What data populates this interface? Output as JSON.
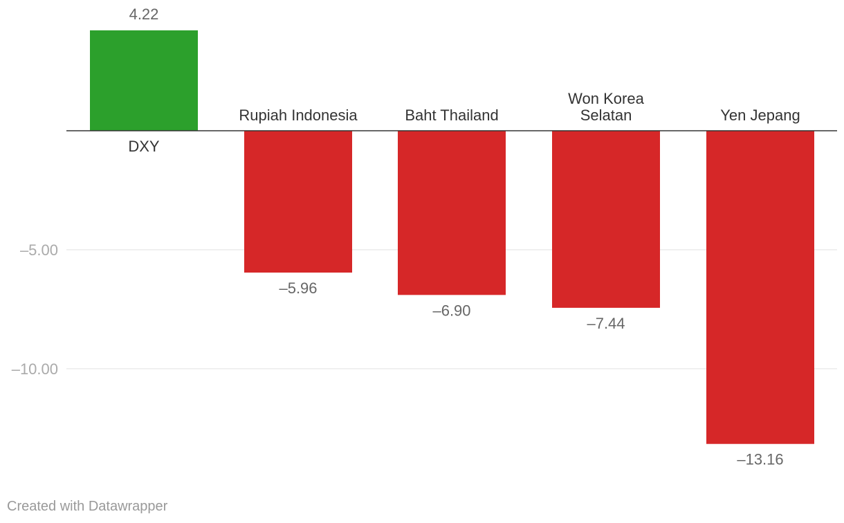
{
  "chart_data": {
    "type": "bar",
    "categories": [
      "DXY",
      "Rupiah Indonesia",
      "Baht Thailand",
      "Won Korea Selatan",
      "Yen Jepang"
    ],
    "category_lines": [
      [
        "DXY"
      ],
      [
        "Rupiah Indonesia"
      ],
      [
        "Baht Thailand"
      ],
      [
        "Won Korea",
        "Selatan"
      ],
      [
        "Yen Jepang"
      ]
    ],
    "values": [
      4.22,
      -5.96,
      -6.9,
      -7.44,
      -13.16
    ],
    "value_labels": [
      "4.22",
      "–5.96",
      "–6.90",
      "–7.44",
      "–13.16"
    ],
    "yticks": [
      {
        "value": -5,
        "label": "–5.00"
      },
      {
        "value": -10,
        "label": "–10.00"
      }
    ],
    "ylim": [
      -14.5,
      4.7
    ],
    "grid": true,
    "colors": {
      "positive": "#2ca02c",
      "negative": "#d62728"
    }
  },
  "footer": {
    "credit": "Created with Datawrapper"
  }
}
